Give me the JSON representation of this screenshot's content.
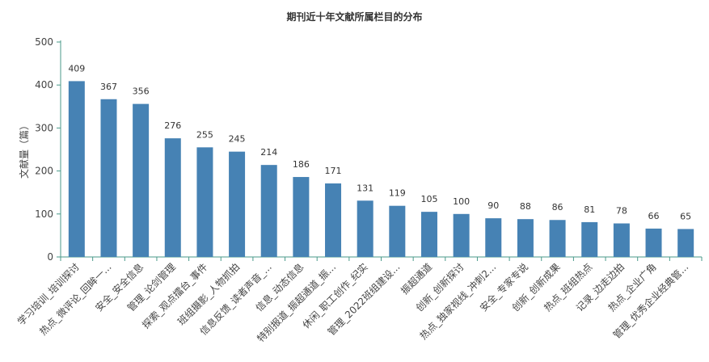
{
  "chart_data": {
    "type": "bar",
    "title": "期刊近十年文献所属栏目的分布",
    "xlabel": "",
    "ylabel": "文献量（篇）",
    "ylim": [
      0,
      500
    ],
    "yticks": [
      0,
      100,
      200,
      300,
      400,
      500
    ],
    "grid": false,
    "legend": "none",
    "bar_color": "#4682b4",
    "axis_color": "#4a9a8a",
    "categories": [
      "学习培训_培训探讨",
      "热点_微评论_回眸一...",
      "安全_安全信息",
      "管理_论剑管理",
      "探索_观点擂台_事件",
      "班组摄影_人物抓拍",
      "信息反馈_读者声音_...",
      "信息_动态信息",
      "特别报道_振超通道_振...",
      "休闲_职工创作_纪实",
      "管理_2022班组建设...",
      "振超通道",
      "创新_创新探讨",
      "热点_独家视线_冲刺2...",
      "安全_专家专说",
      "创新_创新成果",
      "热点_班组热点",
      "记录_边走边拍",
      "热点_企业广角",
      "管理_优秀企业经典管..."
    ],
    "values": [
      409,
      367,
      356,
      276,
      255,
      245,
      214,
      186,
      171,
      131,
      119,
      105,
      100,
      90,
      88,
      86,
      81,
      78,
      66,
      65
    ]
  }
}
